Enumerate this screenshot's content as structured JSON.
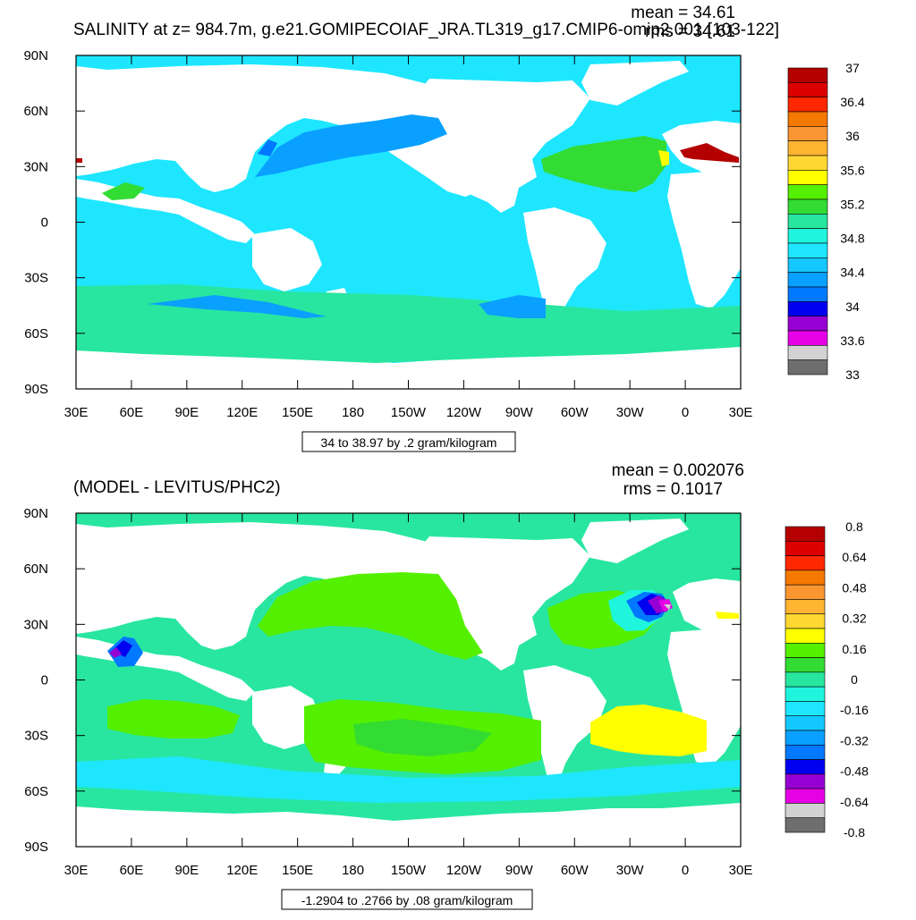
{
  "top": {
    "title": "SALINITY at z= 984.7m, g.e21.GOMIPECOIAF_JRA.TL319_g17.CMIP6-omip2.001 [103-122]",
    "mean": "mean = 34.61",
    "rms": "rms = 34.61",
    "info": "34 to 38.97 by .2 gram/kilogram"
  },
  "bottom": {
    "title": "(MODEL - LEVITUS/PHC2)",
    "mean": "mean = 0.002076",
    "rms": "rms = 0.1017",
    "info": "-1.2904 to .2766 by .08 gram/kilogram"
  },
  "chart_data": [
    {
      "type": "heatmap",
      "title": "SALINITY at z= 984.7m, g.e21.GOMIPECOIAF_JRA.TL319_g17.CMIP6-omip2.001 [103-122]",
      "x_ticks": [
        "30E",
        "60E",
        "90E",
        "120E",
        "150E",
        "180",
        "150W",
        "120W",
        "90W",
        "60W",
        "30W",
        "0",
        "30E"
      ],
      "y_ticks": [
        "90N",
        "60N",
        "30N",
        "0",
        "30S",
        "60S",
        "90S"
      ],
      "colorbar": {
        "labels": [
          "37",
          "36.4",
          "36",
          "35.6",
          "35.2",
          "34.8",
          "34.4",
          "34",
          "33.6",
          "33"
        ],
        "colors": [
          "#b40000",
          "#dc0000",
          "#ff2800",
          "#f57800",
          "#fa9632",
          "#ffb432",
          "#ffd732",
          "#ffff00",
          "#55f000",
          "#32dc32",
          "#28e6a0",
          "#1ef5dc",
          "#1ee6ff",
          "#14c8ff",
          "#0aa0ff",
          "#0078ff",
          "#0000f0",
          "#9600d2",
          "#e600e6",
          "#d2d2d2",
          "#6e6e6e"
        ]
      }
    },
    {
      "type": "heatmap",
      "title": "(MODEL - LEVITUS/PHC2)",
      "x_ticks": [
        "30E",
        "60E",
        "90E",
        "120E",
        "150E",
        "180",
        "150W",
        "120W",
        "90W",
        "60W",
        "30W",
        "0",
        "30E"
      ],
      "y_ticks": [
        "90N",
        "60N",
        "30N",
        "0",
        "30S",
        "60S",
        "90S"
      ],
      "colorbar": {
        "labels": [
          "0.8",
          "0.64",
          "0.48",
          "0.32",
          "0.16",
          "0",
          "-0.16",
          "-0.32",
          "-0.48",
          "-0.64",
          "-0.8"
        ],
        "colors": [
          "#b40000",
          "#dc0000",
          "#ff2800",
          "#f57800",
          "#fa9632",
          "#ffb432",
          "#ffd732",
          "#ffff00",
          "#55f000",
          "#32dc32",
          "#28e6a0",
          "#1ef5dc",
          "#1ee6ff",
          "#14c8ff",
          "#0aa0ff",
          "#0078ff",
          "#0000f0",
          "#9600d2",
          "#e600e6",
          "#d2d2d2",
          "#6e6e6e"
        ]
      }
    }
  ]
}
